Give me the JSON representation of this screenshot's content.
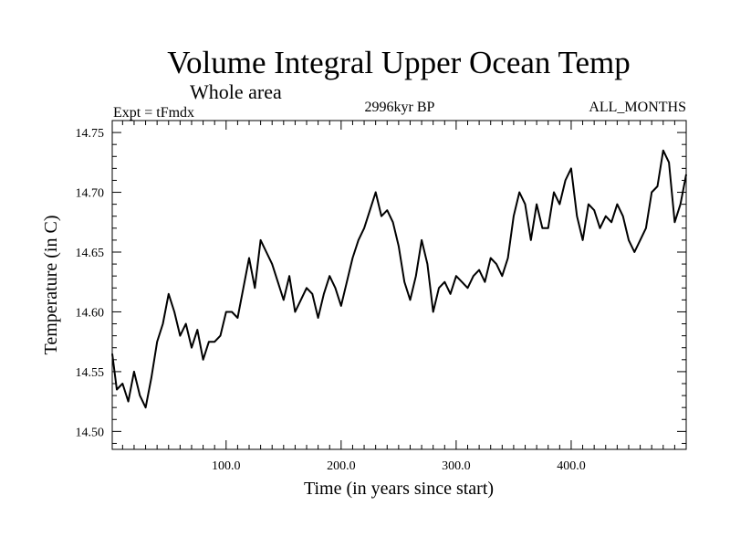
{
  "chart_data": {
    "type": "line",
    "title": "Volume Integral Upper Ocean Temp",
    "subtitle": "Whole area",
    "left_label": "Expt = tFmdx",
    "center_label": "2996kyr BP",
    "right_label": "ALL_MONTHS",
    "xlabel": "Time (in years since start)",
    "ylabel": "Temperature (in C)",
    "xlim": [
      1,
      500
    ],
    "ylim": [
      14.485,
      14.76
    ],
    "x_ticks": [
      100,
      200,
      300,
      400
    ],
    "x_tick_labels": [
      "100.0",
      "200.0",
      "300.0",
      "400.0"
    ],
    "y_ticks": [
      14.5,
      14.55,
      14.6,
      14.65,
      14.7,
      14.75
    ],
    "y_tick_labels": [
      "14.50",
      "14.55",
      "14.60",
      "14.65",
      "14.70",
      "14.75"
    ],
    "series": [
      {
        "name": "Temperature",
        "x": [
          1,
          5,
          10,
          15,
          20,
          25,
          30,
          35,
          40,
          45,
          50,
          55,
          60,
          65,
          70,
          75,
          80,
          85,
          90,
          95,
          100,
          105,
          110,
          115,
          120,
          125,
          130,
          135,
          140,
          145,
          150,
          155,
          160,
          165,
          170,
          175,
          180,
          185,
          190,
          195,
          200,
          205,
          210,
          215,
          220,
          225,
          230,
          235,
          240,
          245,
          250,
          255,
          260,
          265,
          270,
          275,
          280,
          285,
          290,
          295,
          300,
          305,
          310,
          315,
          320,
          325,
          330,
          335,
          340,
          345,
          350,
          355,
          360,
          365,
          370,
          375,
          380,
          385,
          390,
          395,
          400,
          405,
          410,
          415,
          420,
          425,
          430,
          435,
          440,
          445,
          450,
          455,
          460,
          465,
          470,
          475,
          480,
          485,
          490,
          495,
          500
        ],
        "values": [
          14.565,
          14.535,
          14.54,
          14.525,
          14.55,
          14.53,
          14.52,
          14.545,
          14.575,
          14.59,
          14.615,
          14.6,
          14.58,
          14.59,
          14.57,
          14.585,
          14.56,
          14.575,
          14.575,
          14.58,
          14.6,
          14.6,
          14.595,
          14.62,
          14.645,
          14.62,
          14.66,
          14.65,
          14.64,
          14.625,
          14.61,
          14.63,
          14.6,
          14.61,
          14.62,
          14.615,
          14.595,
          14.615,
          14.63,
          14.62,
          14.605,
          14.625,
          14.645,
          14.66,
          14.67,
          14.685,
          14.7,
          14.68,
          14.685,
          14.675,
          14.655,
          14.625,
          14.61,
          14.63,
          14.66,
          14.64,
          14.6,
          14.62,
          14.625,
          14.615,
          14.63,
          14.625,
          14.62,
          14.63,
          14.635,
          14.625,
          14.645,
          14.64,
          14.63,
          14.645,
          14.68,
          14.7,
          14.69,
          14.66,
          14.69,
          14.67,
          14.67,
          14.7,
          14.69,
          14.71,
          14.72,
          14.68,
          14.66,
          14.69,
          14.685,
          14.67,
          14.68,
          14.675,
          14.69,
          14.68,
          14.66,
          14.65,
          14.66,
          14.67,
          14.7,
          14.705,
          14.735,
          14.725,
          14.675,
          14.69,
          14.715
        ]
      }
    ]
  }
}
